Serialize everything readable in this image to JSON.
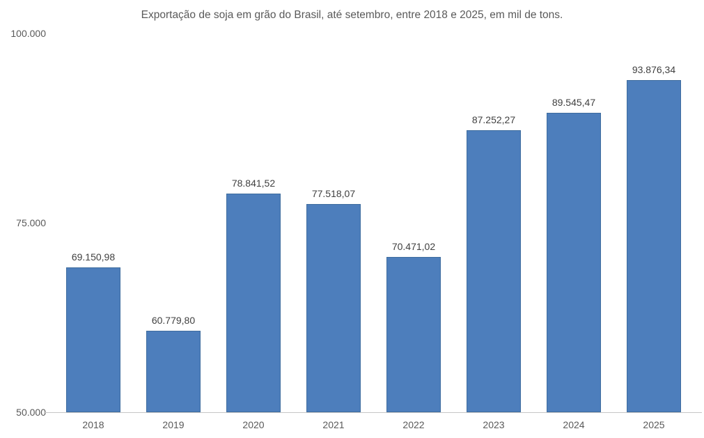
{
  "chart_data": {
    "type": "bar",
    "title": "Exportação de soja em grão do Brasil, até setembro, entre 2018 e 2025, em mil de tons.",
    "categories": [
      "2018",
      "2019",
      "2020",
      "2021",
      "2022",
      "2023",
      "2024",
      "2025"
    ],
    "values": [
      69150.98,
      60779.8,
      78841.52,
      77518.07,
      70471.02,
      87252.27,
      89545.47,
      93876.34
    ],
    "value_labels": [
      "69.150,98",
      "60.779,80",
      "78.841,52",
      "77.518,07",
      "70.471,02",
      "87.252,27",
      "89.545,47",
      "93.876,34"
    ],
    "xlabel": "",
    "ylabel": "",
    "ylim": [
      50000,
      100000
    ],
    "yticks": [
      {
        "value": 100000,
        "label": "100.000"
      },
      {
        "value": 75000,
        "label": "75.000"
      },
      {
        "value": 50000,
        "label": "50.000"
      }
    ],
    "grid": false,
    "legend_position": "none",
    "colors": {
      "bar_fill": "#4D7EBC",
      "bar_border": "#3E6C9E",
      "value_label_text": "#404040",
      "axis_text": "#595959",
      "axis_line": "#C6C6C6",
      "title_text": "#595959",
      "background": "#FFFFFF"
    }
  }
}
